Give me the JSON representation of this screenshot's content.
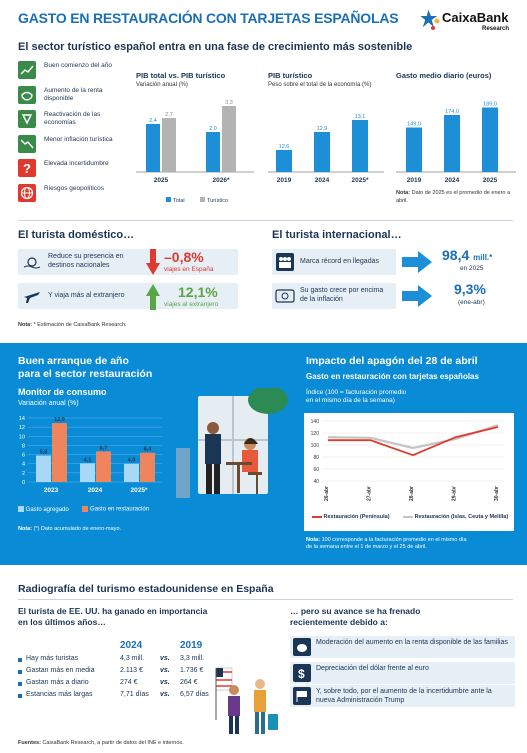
{
  "header": {
    "title": "GASTO EN RESTAURACIÓN CON TARJETAS ESPAÑOLAS",
    "brand": "CaixaBank",
    "brand_sub": "Research"
  },
  "sector": {
    "title": "El sector turístico español entra en una fase de crecimiento más sostenible",
    "items": [
      {
        "label": "Buen comienzo del año",
        "icon": "trend-up-icon"
      },
      {
        "label": "Aumento de la renta disponible",
        "icon": "piggy-bank-icon"
      },
      {
        "label": "Reactivación de las economías",
        "icon": "network-icon"
      },
      {
        "label": "Menor inflación turística",
        "icon": "trend-down-icon"
      },
      {
        "label": "Elevada incertidumbre",
        "icon": "question-icon"
      },
      {
        "label": "Riesgos geopolíticos",
        "icon": "globe-icon"
      }
    ]
  },
  "charts_top": {
    "pib": {
      "title": "PIB total vs. PIB turístico",
      "subtitle": "Variación anual (%)",
      "legend": [
        "Total",
        "Turístico"
      ]
    },
    "pib_tur": {
      "title": "PIB turístico",
      "subtitle": "Peso sobre el total de la economía (%)"
    },
    "gasto": {
      "title": "Gasto medio diario (euros)",
      "note_label": "Nota:",
      "note": "Dato de 2025 es el promedio de enero a abril."
    }
  },
  "chart_data": [
    {
      "type": "bar",
      "title": "PIB total vs. PIB turístico",
      "ylabel": "Variación anual (%)",
      "categories": [
        "2025",
        "2026*"
      ],
      "series": [
        {
          "name": "Total",
          "values": [
            2.4,
            2.0
          ],
          "labels": [
            "2,4",
            "2,0"
          ]
        },
        {
          "name": "Turístico",
          "values": [
            2.7,
            3.3
          ],
          "labels": [
            "2,7",
            "3,3"
          ]
        }
      ],
      "colors": [
        "#1d8fd6",
        "#b3b3b3"
      ]
    },
    {
      "type": "bar",
      "title": "PIB turístico",
      "ylabel": "Peso sobre el total de la economía (%)",
      "categories": [
        "2019",
        "2024",
        "2025*"
      ],
      "values": [
        12.6,
        12.9,
        13.1
      ],
      "labels": [
        "12,6",
        "12,9",
        "13,1"
      ]
    },
    {
      "type": "bar",
      "title": "Gasto medio diario (euros)",
      "categories": [
        "2019",
        "2024",
        "2025"
      ],
      "values": [
        149.0,
        174.0,
        189.0
      ],
      "labels": [
        "149,0",
        "174,0",
        "189,0"
      ]
    },
    {
      "type": "bar",
      "title": "Monitor de consumo",
      "ylabel": "Variación anual (%)",
      "categories": [
        "2023",
        "2024",
        "2025*"
      ],
      "ylim": [
        0,
        14
      ],
      "yticks": [
        0,
        2,
        4,
        6,
        8,
        10,
        12,
        14
      ],
      "series": [
        {
          "name": "Gasto agregado",
          "values": [
            5.8,
            4.1,
            4.0
          ],
          "labels": [
            "5,8",
            "4,1",
            "4,0"
          ]
        },
        {
          "name": "Gasto en restauración",
          "values": [
            12.9,
            6.7,
            6.4
          ],
          "labels": [
            "12,9",
            "6,7",
            "6,4"
          ]
        }
      ]
    },
    {
      "type": "line",
      "title": "Gasto en restauración con tarjetas españolas",
      "ylabel": "Índice (100 = facturación promedio en el mismo día de la semana)",
      "x": [
        "26-abr",
        "27-abr",
        "28-abr",
        "29-abr",
        "30-abr"
      ],
      "ylim": [
        40,
        140
      ],
      "yticks": [
        40,
        60,
        80,
        100,
        120,
        140
      ],
      "series": [
        {
          "name": "Restauración (Península)",
          "values": [
            108,
            108,
            83,
            113,
            130
          ]
        },
        {
          "name": "Restauración (Islas, Ceuta y Melilla)",
          "values": [
            113,
            112,
            95,
            110,
            133
          ]
        }
      ]
    }
  ],
  "domestic": {
    "title": "El turista doméstico…",
    "rows": [
      {
        "text": "Reduce su presencia en destinos nacionales",
        "value": "–0,8%",
        "sub": "viajes en España"
      },
      {
        "text": "Y viaja más al extranjero",
        "value": "12,1%",
        "sub": "viajes al extranjero"
      }
    ],
    "note_label": "Nota:",
    "note": "* Estimación de CaixaBank Research."
  },
  "international": {
    "title": "El turista internacional…",
    "rows": [
      {
        "text": "Marca récord en llegadas",
        "value": "98,4",
        "unit": "mill.*",
        "sub": "en 2025"
      },
      {
        "text": "Su gasto crece por encima de la inflación",
        "value": "9,3%",
        "sub": "(ene-abr)"
      }
    ]
  },
  "restaurants": {
    "title_line1": "Buen arranque de año",
    "title_line2": "para el sector restauración",
    "chart_title": "Monitor de consumo",
    "chart_subtitle": "Variación anual (%)",
    "legend": [
      "Gasto agregado",
      "Gasto en restauración"
    ],
    "note_label": "Nota:",
    "note": "(*) Dato acumulado de enero-mayo."
  },
  "blackout": {
    "title": "Impacto del apagón del 28 de abril",
    "subtitle": "Gasto en restauración con tarjetas españolas",
    "axis_title_1": "Índice (100 = facturación promedio",
    "axis_title_2": "en el mismo día de la semana)",
    "legend": [
      "Restauración (Península)",
      "Restauración (Islas, Ceuta y Melilla)"
    ],
    "note_label": "Nota:",
    "note_1": "100 corresponde a la facturación promedio en el mismo día",
    "note_2": "de la semana entre el 1 de marzo y el 25 de abril."
  },
  "usa": {
    "title": "Radiografía del turismo estadounidense en España",
    "left_title_1": "El turista de EE. UU. ha ganado en importancia",
    "left_title_2": "en los últimos años…",
    "year_a": "2024",
    "year_b": "2019",
    "vs": "vs.",
    "rows": [
      {
        "label": "Hay más turistas",
        "a": "4,3 mill.",
        "b": "3,3 mill."
      },
      {
        "label": "Gastan más en media",
        "a": "2.113 €",
        "b": "1.736 €"
      },
      {
        "label": "Gastan más a diario",
        "a": "274 €",
        "b": "264 €"
      },
      {
        "label": "Estancias más largas",
        "a": "7,71 días",
        "b": "6,57 días"
      }
    ],
    "right_title_1": "… pero su avance se ha frenado",
    "right_title_2": "recientemente debido a:",
    "reasons": [
      {
        "text": "Moderación del aumento en la renta disponible de las familias",
        "icon": "piggy-bank-icon"
      },
      {
        "text": "Depreciación del dólar frente al euro",
        "icon": "dollar-icon"
      },
      {
        "text": "Y, sobre todo, por el aumento de la incertidumbre ante la nueva Administración Trump",
        "icon": "flag-icon"
      }
    ]
  },
  "footer": {
    "label": "Fuentes:",
    "text": "CaixaBank Research, a partir de datos del INE e internos."
  },
  "colors": {
    "accent_blue": "#1a6fb5",
    "bar_blue": "#1d8fd6",
    "bar_grey": "#b3b3b3",
    "banner": "#0a8bd6",
    "salmon": "#f0845c",
    "light_blue_bar": "#a8d8f5",
    "red": "#e03a2f",
    "green": "#5aa646",
    "navy": "#1b3554"
  }
}
